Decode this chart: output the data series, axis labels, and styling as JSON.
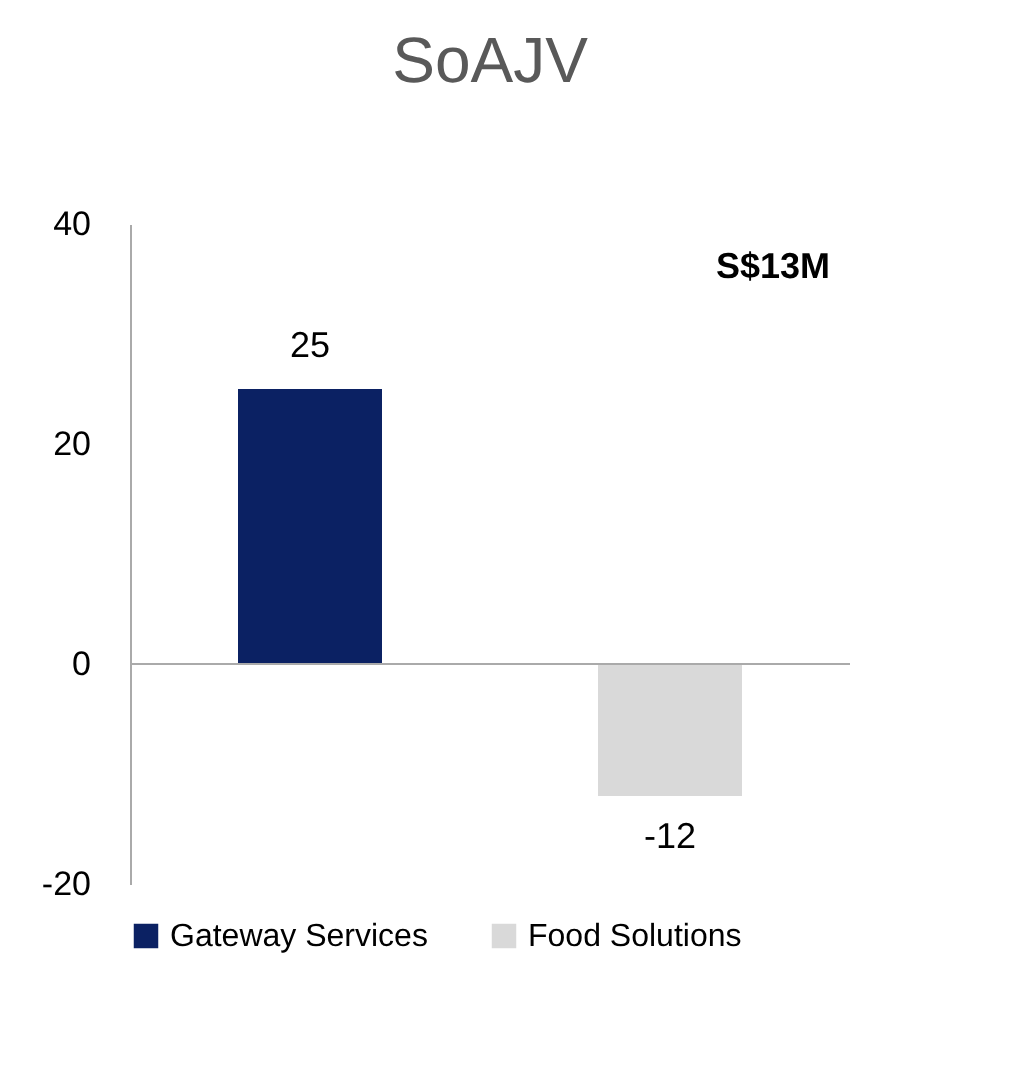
{
  "chart_data": {
    "type": "bar",
    "title": "SoAJV",
    "categories": [
      null,
      null
    ],
    "series": [
      {
        "name": "Gateway Services",
        "color": "#0b2163",
        "values": [
          25,
          null
        ]
      },
      {
        "name": "Food Solutions",
        "color": "#d9d9d9",
        "values": [
          null,
          -12
        ]
      }
    ],
    "ref_lines": [
      {
        "axis": "y",
        "value": 0,
        "color": "#aaaaaa"
      }
    ],
    "ylim": [
      -20,
      40
    ],
    "yticks": [
      -20,
      0,
      20,
      40
    ],
    "grid": false,
    "legend": "bottom",
    "data_labels": true,
    "annotations": [
      "S$13M"
    ]
  }
}
